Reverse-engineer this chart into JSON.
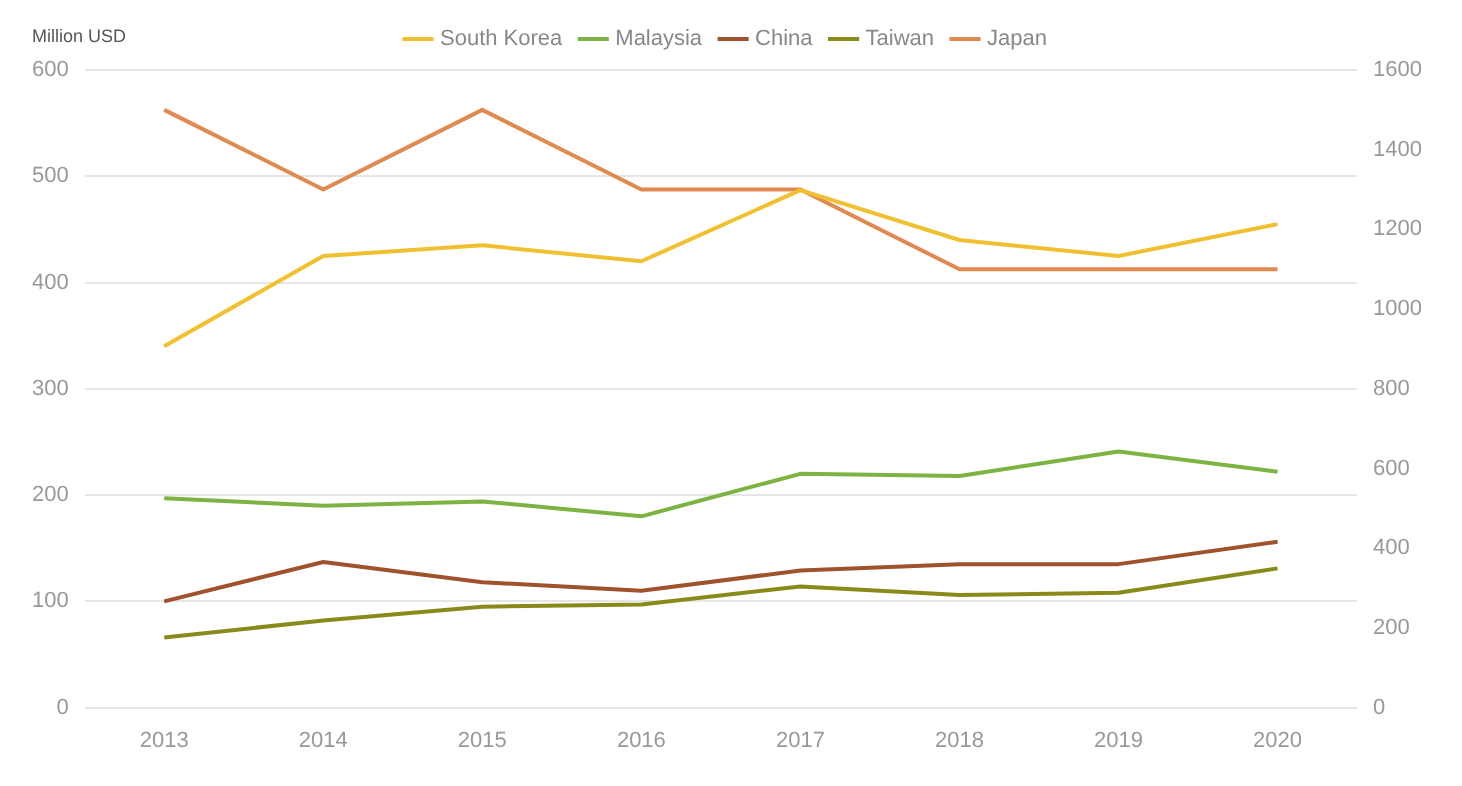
{
  "chart_data": {
    "type": "line",
    "ylabel": "Million USD",
    "categories": [
      "2013",
      "2014",
      "2015",
      "2016",
      "2017",
      "2018",
      "2019",
      "2020"
    ],
    "series": [
      {
        "name": "South Korea",
        "color": "#f0c030",
        "values": [
          340,
          425,
          435,
          420,
          487,
          440,
          425,
          455
        ]
      },
      {
        "name": "Malaysia",
        "color": "#7cb342",
        "values": [
          197,
          190,
          194,
          180,
          220,
          218,
          241,
          222
        ]
      },
      {
        "name": "China",
        "color": "#a0522d",
        "values": [
          100,
          137,
          118,
          110,
          129,
          135,
          135,
          156
        ]
      },
      {
        "name": "Taiwan",
        "color": "#8a8a1a",
        "values": [
          66,
          82,
          95,
          97,
          114,
          106,
          108,
          131
        ]
      },
      {
        "name": "Japan",
        "color": "#e08a50",
        "axis": "y2",
        "values": [
          1500,
          1300,
          1500,
          1300,
          1300,
          1100,
          1100,
          1100
        ]
      }
    ],
    "ylim": [
      0,
      600
    ],
    "yticks": [
      0,
      100,
      200,
      300,
      400,
      500,
      600
    ],
    "y2lim": [
      0,
      1600
    ],
    "y2ticks": [
      0,
      200,
      400,
      600,
      800,
      1000,
      1200,
      1400,
      1600
    ],
    "grid": "y",
    "legend": "top",
    "marker": "none",
    "line_style": "solid"
  }
}
